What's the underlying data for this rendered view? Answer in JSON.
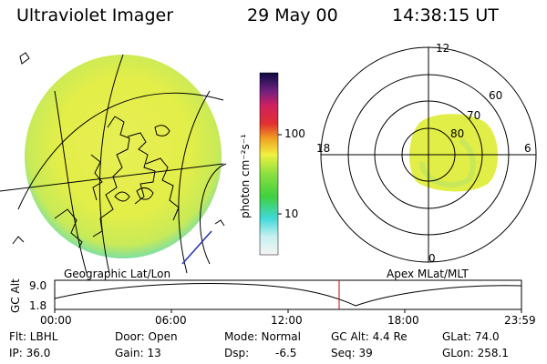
{
  "header": {
    "title": "Ultraviolet Imager",
    "date": "29 May 00",
    "time": "14:38:15 UT"
  },
  "colorbar": {
    "unit_label": "photon cm⁻²s⁻¹",
    "ticks": [
      "100",
      "10"
    ],
    "scale": "log"
  },
  "polar": {
    "mlt_labels": {
      "top": "12",
      "bottom": "0",
      "left": "18",
      "right": "6"
    },
    "lat_labels": [
      "60",
      "70",
      "80"
    ]
  },
  "timeline": {
    "left_label": "Geographic Lat/Lon",
    "right_label": "Apex MLat/MLT",
    "y_axis_title": "GC Alt",
    "y_ticks": [
      "9.0",
      "1.8"
    ],
    "x_ticks": [
      "00:00",
      "06:00",
      "12:00",
      "18:00",
      "23:59"
    ],
    "marker_time": "14:38",
    "marker_color": "#cc0000"
  },
  "info": {
    "flt": "Flt: LBHL",
    "ip": "IP: 36.0",
    "door": "Door: Open",
    "gain": "Gain: 13",
    "mode": "Mode: Normal",
    "dsp_label": "Dsp:",
    "dsp_value": "-6.5",
    "gc_alt": "GC Alt: 4.4 Re",
    "seq": "Seq: 39",
    "glat": "GLat: 74.0",
    "glon": "GLon: 258.1"
  }
}
